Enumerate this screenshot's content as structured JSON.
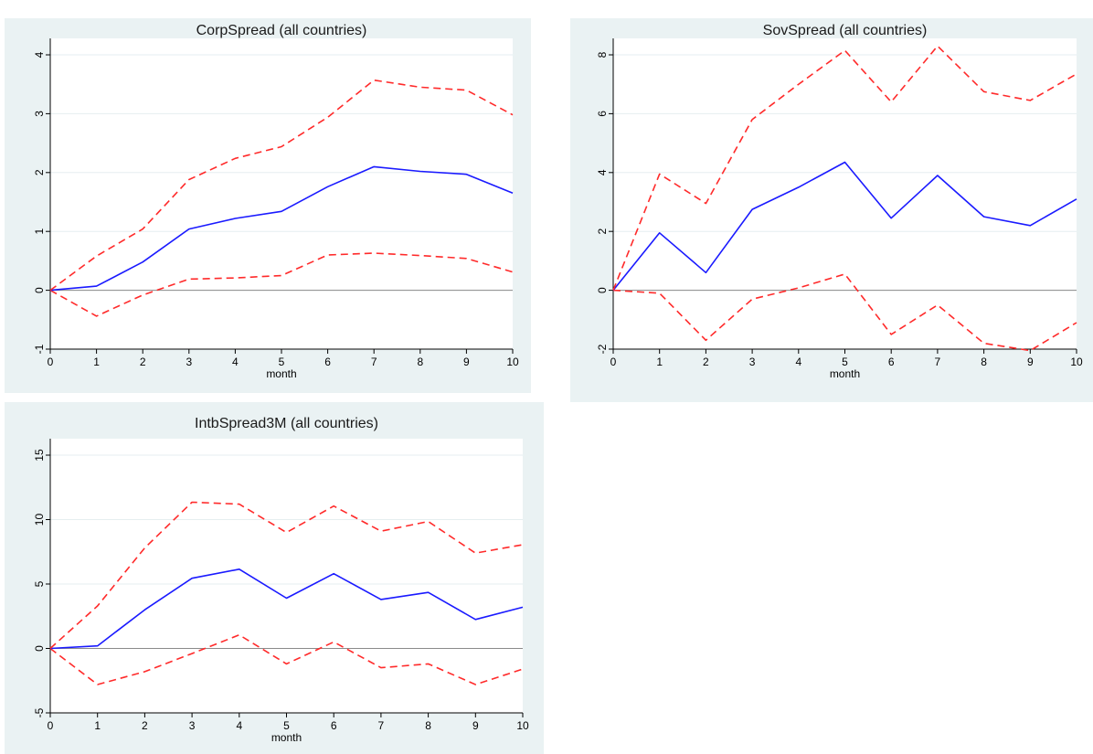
{
  "chart_data": [
    {
      "type": "line",
      "title": "CorpSpread (all countries)",
      "xlabel": "month",
      "ylabel": "",
      "x": [
        0,
        1,
        2,
        3,
        4,
        5,
        6,
        7,
        8,
        9,
        10
      ],
      "xticks": [
        "0",
        "1",
        "2",
        "3",
        "4",
        "5",
        "6",
        "7",
        "8",
        "9",
        "10"
      ],
      "xlim": [
        0,
        10
      ],
      "ylim": [
        -1,
        4
      ],
      "yticks": [
        -1,
        0,
        1,
        2,
        3,
        4
      ],
      "ytick_labels": [
        "-1",
        "0",
        "1",
        "2",
        "3",
        "4"
      ],
      "grid": true,
      "zero_line": true,
      "series": [
        {
          "values": [
            0,
            -0.44,
            -0.08,
            0.19,
            0.21,
            0.25,
            0.6,
            0.63,
            0.59,
            0.54,
            0.31
          ],
          "color": "#ff2a2a",
          "style": "dashed"
        },
        {
          "values": [
            0,
            0.07,
            0.48,
            1.04,
            1.22,
            1.34,
            1.76,
            2.1,
            2.02,
            1.97,
            1.65
          ],
          "color": "#1a1aff",
          "style": "solid"
        },
        {
          "values": [
            0,
            0.58,
            1.04,
            1.88,
            2.24,
            2.44,
            2.94,
            3.57,
            3.45,
            3.4,
            2.98
          ],
          "color": "#ff2a2a",
          "style": "dashed"
        }
      ]
    },
    {
      "type": "line",
      "title": "SovSpread (all countries)",
      "xlabel": "month",
      "ylabel": "",
      "x": [
        0,
        1,
        2,
        3,
        4,
        5,
        6,
        7,
        8,
        9,
        10
      ],
      "xticks": [
        "0",
        "1",
        "2",
        "3",
        "4",
        "5",
        "6",
        "7",
        "8",
        "9",
        "10"
      ],
      "xlim": [
        0,
        10
      ],
      "ylim": [
        -2,
        8
      ],
      "yticks": [
        -2,
        0,
        2,
        4,
        6,
        8
      ],
      "ytick_labels": [
        "-2",
        "0",
        "2",
        "4",
        "6",
        "8"
      ],
      "grid": true,
      "zero_line": true,
      "series": [
        {
          "values": [
            0,
            -0.1,
            -1.7,
            -0.3,
            0.08,
            0.55,
            -1.5,
            -0.5,
            -1.8,
            -2.05,
            -1.1
          ],
          "color": "#ff2a2a",
          "style": "dashed"
        },
        {
          "values": [
            0,
            1.95,
            0.6,
            2.75,
            3.5,
            4.35,
            2.45,
            3.9,
            2.5,
            2.2,
            3.1
          ],
          "color": "#1a1aff",
          "style": "solid"
        },
        {
          "values": [
            0,
            3.95,
            2.95,
            5.8,
            7.0,
            8.15,
            6.4,
            8.3,
            6.75,
            6.45,
            7.35
          ],
          "color": "#ff2a2a",
          "style": "dashed"
        }
      ]
    },
    {
      "type": "line",
      "title": "IntbSpread3M (all countries)",
      "xlabel": "month",
      "ylabel": "",
      "x": [
        0,
        1,
        2,
        3,
        4,
        5,
        6,
        7,
        8,
        9,
        10
      ],
      "xticks": [
        "0",
        "1",
        "2",
        "3",
        "4",
        "5",
        "6",
        "7",
        "8",
        "9",
        "10"
      ],
      "xlim": [
        0,
        10
      ],
      "ylim": [
        -5,
        15
      ],
      "yticks": [
        -5,
        0,
        5,
        10,
        15
      ],
      "ytick_labels": [
        "-5",
        "0",
        "5",
        "10",
        "15"
      ],
      "grid": true,
      "zero_line": true,
      "series": [
        {
          "values": [
            0,
            -2.8,
            -1.8,
            -0.4,
            1.05,
            -1.2,
            0.5,
            -1.5,
            -1.2,
            -2.8,
            -1.6
          ],
          "color": "#ff2a2a",
          "style": "dashed"
        },
        {
          "values": [
            0,
            0.2,
            3.0,
            5.45,
            6.15,
            3.9,
            5.8,
            3.8,
            4.35,
            2.25,
            3.2
          ],
          "color": "#1a1aff",
          "style": "solid"
        },
        {
          "values": [
            0,
            3.3,
            7.8,
            11.35,
            11.2,
            9.0,
            11.05,
            9.1,
            9.85,
            7.4,
            8.05
          ],
          "color": "#ff2a2a",
          "style": "dashed"
        }
      ]
    }
  ]
}
